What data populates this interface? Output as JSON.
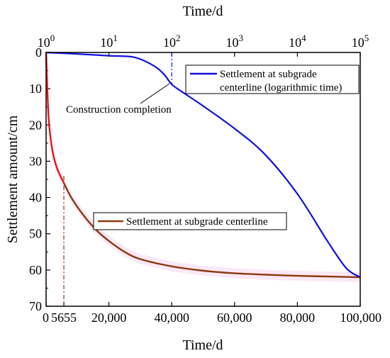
{
  "chart_data": [
    {
      "type": "line",
      "xaxis": "bottom-linear",
      "yaxis": "left",
      "x": [
        0,
        800,
        2000,
        3500,
        5655,
        8000,
        12000,
        16000,
        20000,
        25000,
        30000,
        40000,
        50000,
        60000,
        70000,
        80000,
        90000,
        100000
      ],
      "y": [
        0,
        18,
        27,
        32,
        36,
        40,
        45,
        49,
        52,
        55,
        57,
        59,
        60.2,
        60.9,
        61.3,
        61.6,
        61.8,
        62
      ],
      "series_name": "Settlement at subgrade centerline",
      "color": "#8b3a0e",
      "early_color": "#ee1111",
      "marker_x": 5655
    },
    {
      "type": "line",
      "xaxis": "top-log",
      "yaxis": "left",
      "x": [
        1,
        3,
        10,
        25,
        50,
        75,
        100,
        150,
        300,
        1000,
        3000,
        10000,
        30000,
        60000,
        100000
      ],
      "y": [
        0,
        0.4,
        0.9,
        1.3,
        3.5,
        6,
        8.8,
        11,
        14.5,
        21,
        28,
        39,
        52,
        59.5,
        62
      ],
      "series_name": "Settlement at subgrade centerline (logarithmic time)",
      "color": "#1010dd",
      "marker_x": 100
    }
  ],
  "axes": {
    "ylabel": "Settlement amount/cm",
    "bottom_xlabel": "Time/d",
    "top_xlabel": "Time/d",
    "ylim": [
      0,
      70
    ],
    "yticks": [
      "0",
      "10",
      "20",
      "30",
      "40",
      "50",
      "60",
      "70"
    ],
    "bottom_xlim": [
      0,
      100000
    ],
    "bottom_xticks": [
      "0",
      "5655",
      "20,000",
      "40,000",
      "60,000",
      "80,000",
      "100,000"
    ],
    "top_xlim": [
      1,
      100000
    ],
    "top_xticks": [
      {
        "base": "10",
        "exp": "0"
      },
      {
        "base": "10",
        "exp": "1"
      },
      {
        "base": "10",
        "exp": "2"
      },
      {
        "base": "10",
        "exp": "3"
      },
      {
        "base": "10",
        "exp": "4"
      },
      {
        "base": "10",
        "exp": "5"
      }
    ]
  },
  "legend_top": {
    "label": "Settlement at subgrade centerline (logarithmic time)",
    "line1": "Settlement at subgrade",
    "line2": "centerline (logarithmic time)",
    "color": "#1010dd"
  },
  "legend_bottom": {
    "label": "Settlement at subgrade centerline",
    "color": "#8b3a0e"
  },
  "annotation": {
    "text": "Construction completion"
  }
}
